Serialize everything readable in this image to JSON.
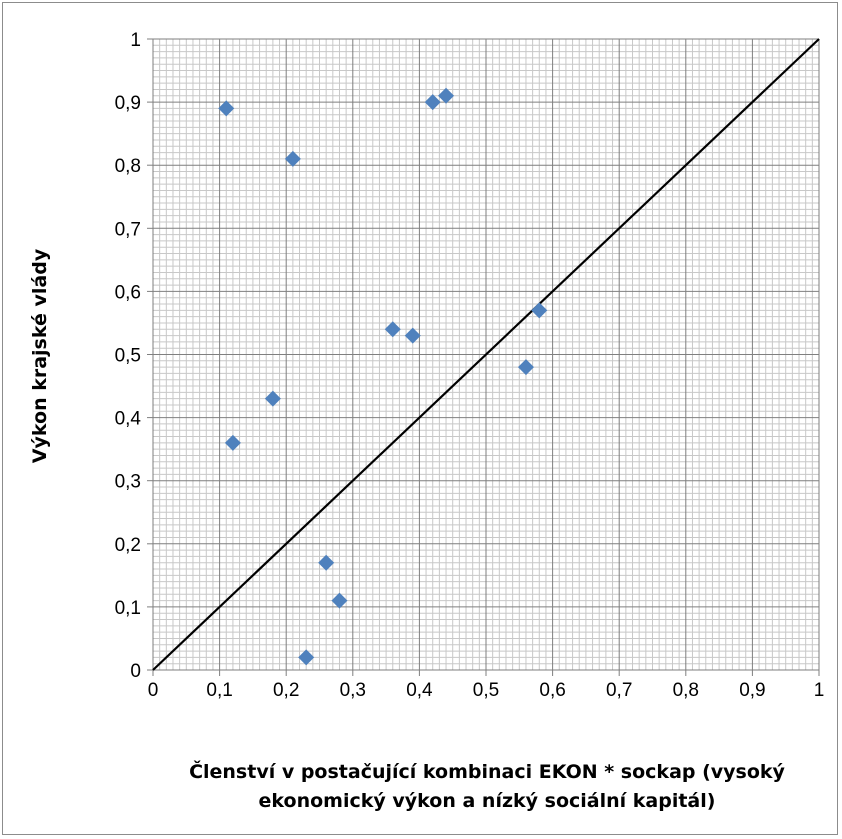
{
  "chart_data": {
    "type": "scatter",
    "title": "",
    "xlabel_lines": [
      "Členství v postačující kombinaci EKON * sockap (vysoký",
      "ekonomický výkon a nízký sociální kapitál)"
    ],
    "ylabel": "Výkon krajské vlády",
    "xlim": [
      0,
      1
    ],
    "ylim": [
      0,
      1
    ],
    "x_ticks": [
      "0",
      "0,1",
      "0,2",
      "0,3",
      "0,4",
      "0,5",
      "0,6",
      "0,7",
      "0,8",
      "0,9",
      "1"
    ],
    "y_ticks": [
      "0",
      "0,1",
      "0,2",
      "0,3",
      "0,4",
      "0,5",
      "0,6",
      "0,7",
      "0,8",
      "0,9",
      "1"
    ],
    "grid": "on",
    "legend": "none",
    "marker_color": "#4F81BD",
    "reference_line": {
      "from": [
        0,
        0
      ],
      "to": [
        1,
        1
      ],
      "color": "#000000"
    },
    "points": [
      {
        "x": 0.11,
        "y": 0.89
      },
      {
        "x": 0.21,
        "y": 0.81
      },
      {
        "x": 0.42,
        "y": 0.9
      },
      {
        "x": 0.44,
        "y": 0.91
      },
      {
        "x": 0.36,
        "y": 0.54
      },
      {
        "x": 0.39,
        "y": 0.53
      },
      {
        "x": 0.58,
        "y": 0.57
      },
      {
        "x": 0.56,
        "y": 0.48
      },
      {
        "x": 0.18,
        "y": 0.43
      },
      {
        "x": 0.12,
        "y": 0.36
      },
      {
        "x": 0.26,
        "y": 0.17
      },
      {
        "x": 0.28,
        "y": 0.11
      },
      {
        "x": 0.23,
        "y": 0.02
      }
    ]
  }
}
